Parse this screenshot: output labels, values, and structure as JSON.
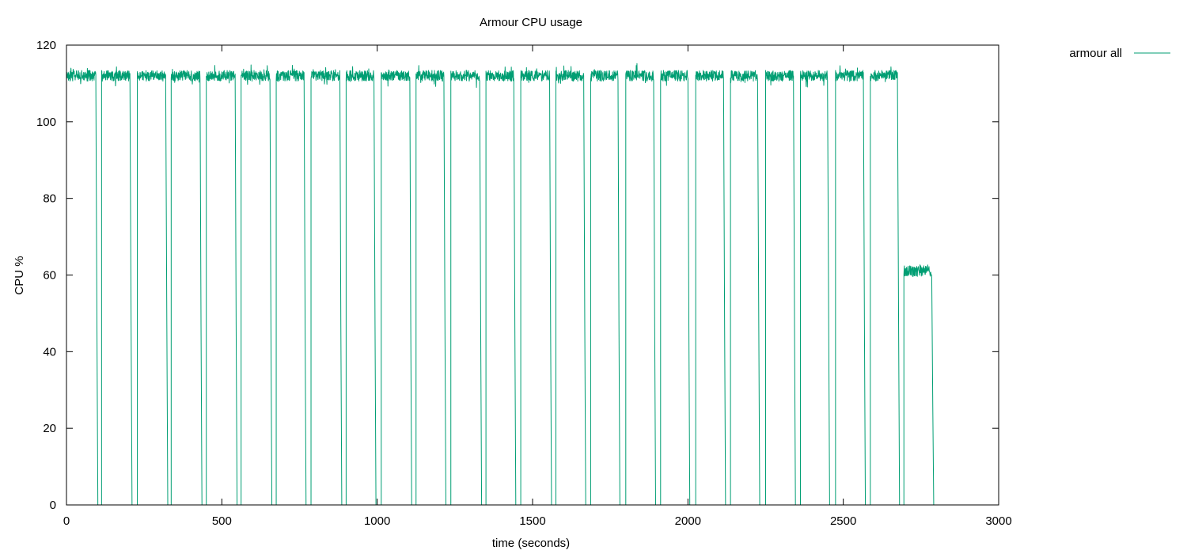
{
  "chart_data": {
    "type": "line",
    "title": "Armour CPU usage",
    "xlabel": "time (seconds)",
    "ylabel": "CPU %",
    "xlim": [
      0,
      3000
    ],
    "ylim": [
      0,
      120
    ],
    "xticks": [
      "0",
      "500",
      "1000",
      "1500",
      "2000",
      "2500",
      "3000"
    ],
    "yticks": [
      "0",
      "20",
      "40",
      "60",
      "80",
      "100",
      "120"
    ],
    "grid": false,
    "legend": "top-right, outside plot",
    "series": [
      {
        "name": "armour all",
        "color": "#009e73",
        "busy_intervals": [
          [
            0,
            95,
            112
          ],
          [
            113,
            205,
            112
          ],
          [
            228,
            320,
            112
          ],
          [
            337,
            430,
            112
          ],
          [
            450,
            543,
            112
          ],
          [
            562,
            655,
            112
          ],
          [
            675,
            765,
            112
          ],
          [
            787,
            880,
            112
          ],
          [
            900,
            990,
            112
          ],
          [
            1013,
            1105,
            112
          ],
          [
            1125,
            1215,
            112
          ],
          [
            1237,
            1330,
            112
          ],
          [
            1350,
            1440,
            112
          ],
          [
            1462,
            1555,
            112
          ],
          [
            1575,
            1665,
            112
          ],
          [
            1687,
            1775,
            112
          ],
          [
            1800,
            1890,
            112
          ],
          [
            1912,
            2000,
            112
          ],
          [
            2025,
            2115,
            112
          ],
          [
            2137,
            2225,
            112
          ],
          [
            2250,
            2340,
            112
          ],
          [
            2362,
            2450,
            112
          ],
          [
            2475,
            2565,
            112
          ],
          [
            2587,
            2675,
            112
          ],
          [
            2695,
            2785,
            61
          ]
        ],
        "idle_value": 0,
        "end_time": 2785
      }
    ]
  }
}
